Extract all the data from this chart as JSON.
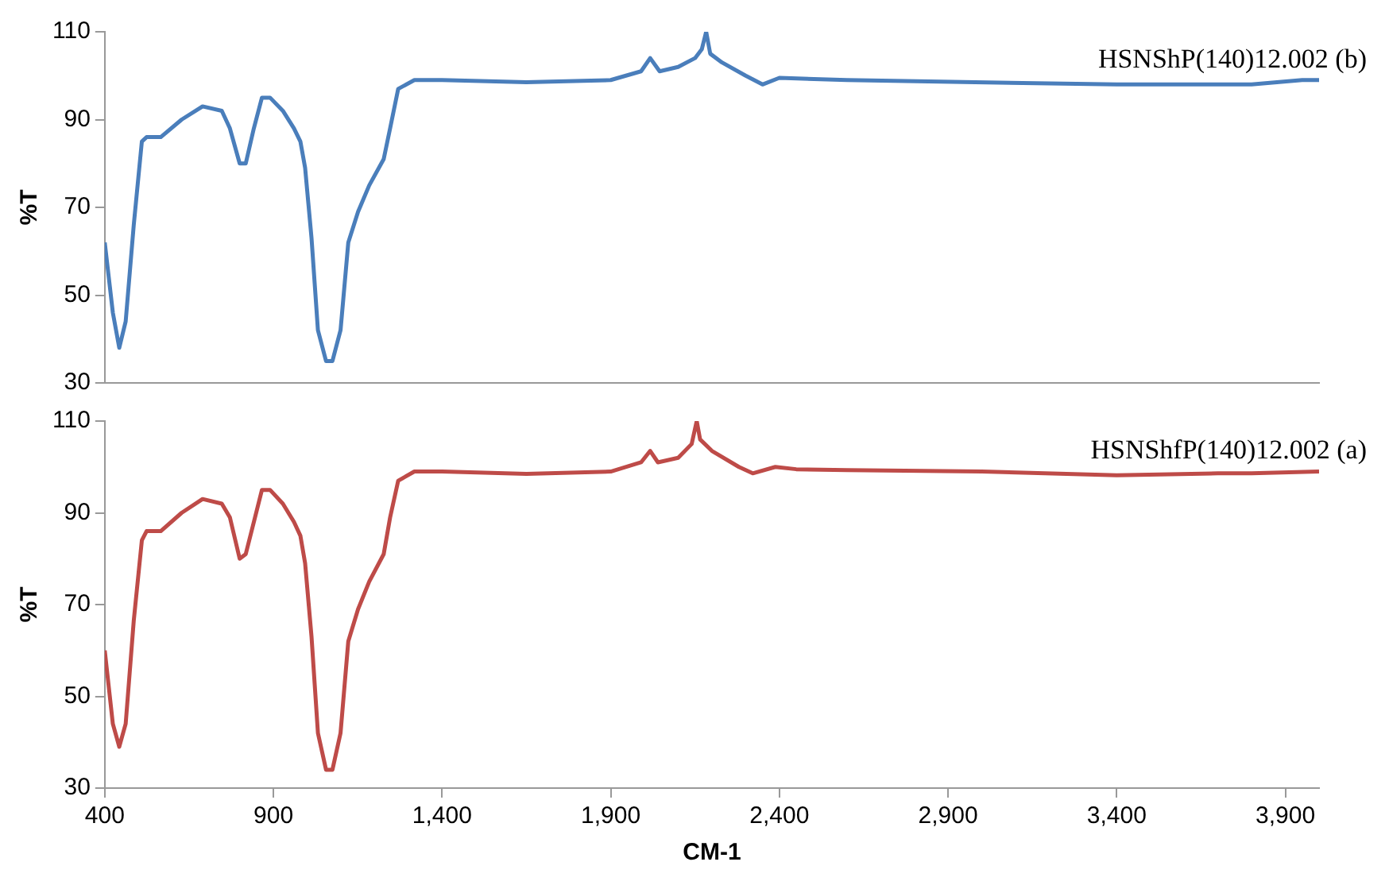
{
  "chart_data": [
    {
      "type": "line",
      "ylabel": "%T",
      "xlim": [
        400,
        4000
      ],
      "ylim": [
        30,
        110
      ],
      "yticks": [
        30,
        50,
        70,
        90,
        110
      ],
      "tick_labels": "y",
      "line_style": "solid",
      "marker": "none",
      "x": [
        400,
        424,
        443,
        462,
        486,
        510,
        524,
        566,
        628,
        690,
        747,
        771,
        800,
        818,
        842,
        866,
        890,
        928,
        961,
        980,
        994,
        1013,
        1032,
        1056,
        1075,
        1099,
        1122,
        1151,
        1184,
        1227,
        1246,
        1270,
        1318,
        1400,
        1650,
        1900,
        1990,
        2017,
        2045,
        2100,
        2150,
        2170,
        2183,
        2195,
        2230,
        2300,
        2350,
        2400,
        2600,
        2980,
        3400,
        3800,
        3950,
        4000
      ],
      "series": [
        {
          "name": "HSNShP(140)12.002 (b)",
          "color": "#4a7ebb",
          "values": [
            62,
            46,
            38,
            44,
            66,
            85,
            86,
            86,
            90,
            93,
            92,
            88,
            80,
            80,
            88,
            95,
            95,
            92,
            88,
            85,
            79,
            63,
            42,
            35,
            35,
            42,
            62,
            69,
            75,
            81,
            88,
            97,
            99,
            99,
            98.5,
            99,
            101,
            104,
            101,
            102,
            104,
            106,
            110,
            105,
            103,
            100,
            98,
            99.5,
            99,
            98.5,
            98,
            98,
            99,
            99
          ]
        }
      ]
    },
    {
      "type": "line",
      "ylabel": "%T",
      "xlabel": "CM-1",
      "xlim": [
        400,
        4000
      ],
      "ylim": [
        30,
        110
      ],
      "yticks": [
        30,
        50,
        70,
        90,
        110
      ],
      "xticks": [
        400,
        {
          "value": 900,
          "label": "900"
        },
        {
          "value": 1400,
          "label": "1,400"
        },
        {
          "value": 1900,
          "label": "1,900"
        },
        {
          "value": 2400,
          "label": "2,400"
        },
        {
          "value": 2900,
          "label": "2,900"
        },
        {
          "value": 3400,
          "label": "3,400"
        },
        {
          "value": 3900,
          "label": "3,900"
        }
      ],
      "line_style": "solid",
      "marker": "none",
      "x": [
        400,
        424,
        443,
        462,
        486,
        510,
        524,
        566,
        628,
        690,
        747,
        771,
        800,
        818,
        842,
        866,
        890,
        928,
        961,
        980,
        994,
        1013,
        1032,
        1056,
        1075,
        1099,
        1122,
        1151,
        1184,
        1227,
        1246,
        1270,
        1318,
        1400,
        1650,
        1900,
        1990,
        2017,
        2040,
        2100,
        2140,
        2155,
        2165,
        2200,
        2280,
        2321,
        2388,
        2450,
        2600,
        3000,
        3400,
        3700,
        3800,
        4000
      ],
      "series": [
        {
          "name": "HSNShfP(140)12.002 (a)",
          "color": "#be4b48",
          "values": [
            60,
            44,
            39,
            44,
            66.5,
            84,
            86,
            86,
            90,
            93,
            92,
            89,
            80,
            81,
            88,
            95,
            95,
            92,
            88,
            85,
            79,
            63,
            42,
            34,
            34,
            42,
            62,
            69,
            75,
            81,
            89,
            97,
            99,
            99,
            98.5,
            99,
            101,
            103.5,
            101,
            102,
            105,
            110,
            106,
            103.5,
            100,
            98.6,
            100,
            99.5,
            99.3,
            99,
            98.2,
            98.6,
            98.6,
            99
          ]
        }
      ]
    }
  ]
}
